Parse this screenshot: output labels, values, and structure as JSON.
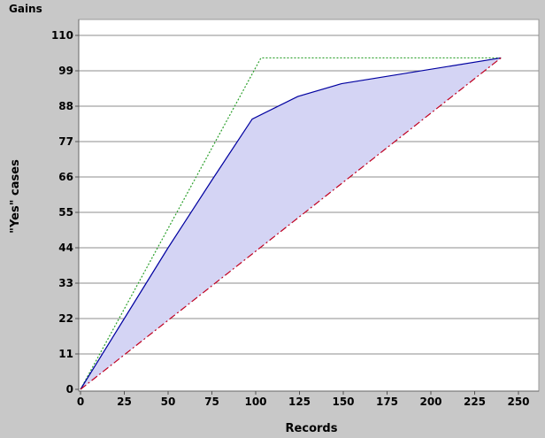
{
  "chart_data": {
    "type": "line",
    "title": "Gains",
    "xlabel": "Records",
    "ylabel": "\"Yes\" cases",
    "xlim": [
      0,
      255
    ],
    "ylim": [
      0,
      110
    ],
    "xticks": [
      0,
      25,
      50,
      75,
      100,
      125,
      150,
      175,
      200,
      225,
      250
    ],
    "yticks": [
      0,
      11,
      22,
      33,
      44,
      55,
      66,
      77,
      88,
      99,
      110
    ],
    "grid": "horizontal",
    "series": [
      {
        "points": [
          [
            0,
            0
          ],
          [
            103,
            103
          ],
          [
            240,
            103
          ]
        ],
        "style": "dotted",
        "color": "#2ca02c"
      },
      {
        "points": [
          [
            0,
            0
          ],
          [
            25,
            22
          ],
          [
            50,
            44
          ],
          [
            75,
            65
          ],
          [
            98,
            84
          ],
          [
            124,
            91
          ],
          [
            149,
            95
          ],
          [
            240,
            103
          ]
        ],
        "style": "solid",
        "color": "#0000a0",
        "fill": "#d4d4f4"
      },
      {
        "points": [
          [
            0,
            0
          ],
          [
            240,
            103
          ]
        ],
        "style": "dashed",
        "color": "#c00020"
      }
    ]
  }
}
